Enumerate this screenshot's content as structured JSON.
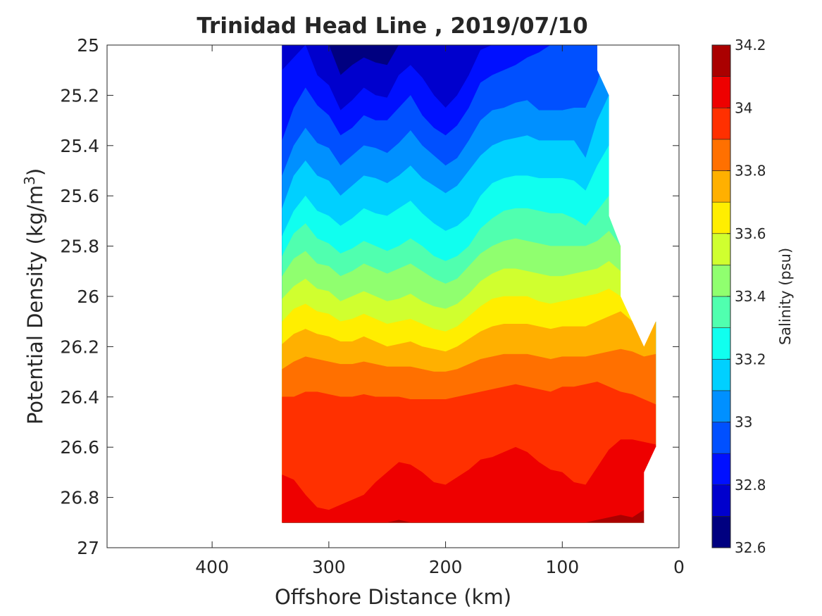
{
  "chart_data": {
    "type": "contour",
    "title": "Trinidad Head Line , 2019/07/10",
    "xlabel": "Offshore Distance (km)",
    "ylabel_text": "Potential Density (kg/m",
    "ylabel_sup": "3",
    "ylabel_close": ")",
    "colorbar_label": "Salinity (psu)",
    "xlim": [
      490,
      0
    ],
    "xlim_note": "reversed: offshore distance decreases to the right",
    "ylim": [
      25,
      27
    ],
    "y_reversed": true,
    "x_ticks": [
      400,
      300,
      200,
      100,
      0
    ],
    "y_ticks": [
      25,
      25.2,
      25.4,
      25.6,
      25.8,
      26,
      26.2,
      26.4,
      26.6,
      26.8,
      27
    ],
    "y_tick_labels": [
      "25",
      "25.2",
      "25.4",
      "25.6",
      "25.8",
      "26",
      "26.2",
      "26.4",
      "26.6",
      "26.8",
      "27"
    ],
    "colorbar_ticks": [
      34.2,
      34,
      33.8,
      33.6,
      33.4,
      33.2,
      33,
      32.8,
      32.6
    ],
    "colorbar_tick_labels": [
      "34.2",
      "34",
      "33.8",
      "33.6",
      "33.4",
      "33.2",
      "33",
      "32.8",
      "32.6"
    ],
    "levels": [
      32.6,
      32.7,
      32.8,
      32.9,
      33.0,
      33.1,
      33.2,
      33.3,
      33.4,
      33.5,
      33.6,
      33.7,
      33.8,
      33.9,
      34.0,
      34.1,
      34.2
    ],
    "level_colors": [
      "#000080",
      "#0000cd",
      "#0010ff",
      "#0050ff",
      "#0090ff",
      "#00d0ff",
      "#10ffef",
      "#50ffaf",
      "#90ff6f",
      "#d0ff2f",
      "#ffee00",
      "#ffb000",
      "#ff7000",
      "#ff3000",
      "#ee0000",
      "#aa0000"
    ],
    "x": [
      340,
      330,
      320,
      310,
      300,
      290,
      280,
      270,
      260,
      250,
      240,
      230,
      220,
      210,
      200,
      190,
      180,
      170,
      160,
      150,
      140,
      130,
      120,
      110,
      100,
      90,
      80,
      70,
      60,
      50,
      40,
      30,
      20
    ],
    "bottom_density": 26.9,
    "top_density": 25.0,
    "nan_region_top": [
      {
        "x": 70,
        "density": 25.0
      },
      {
        "x": 70,
        "density": 25.1
      },
      {
        "x": 60,
        "density": 25.2
      },
      {
        "x": 60,
        "density": 25.68
      },
      {
        "x": 50,
        "density": 25.8
      },
      {
        "x": 50,
        "density": 26.0
      },
      {
        "x": 30,
        "density": 26.2
      },
      {
        "x": 20,
        "density": 26.1
      }
    ],
    "nan_region_bottom": [
      {
        "x": 20,
        "density": 26.6
      },
      {
        "x": 30,
        "density": 26.7
      },
      {
        "x": 30,
        "density": 26.9
      }
    ],
    "contours": [
      {
        "level": 32.7,
        "density": [
          25.0,
          25.0,
          25.0,
          25.0,
          25.0,
          25.12,
          25.08,
          25.05,
          25.07,
          25.08,
          25.0,
          25.0,
          25.0,
          25.0,
          25.0,
          25.0,
          25.0,
          25.0,
          25.0,
          25.0,
          25.0,
          25.0,
          25.0,
          25.0,
          25.0,
          25.0,
          25.0,
          25.0,
          25.0,
          25.0,
          25.0,
          25.0,
          25.0
        ]
      },
      {
        "level": 32.8,
        "density": [
          25.1,
          25.05,
          25.0,
          25.12,
          25.16,
          25.26,
          25.22,
          25.17,
          25.2,
          25.21,
          25.12,
          25.08,
          25.13,
          25.2,
          25.25,
          25.2,
          25.12,
          25.02,
          25.0,
          25.0,
          25.0,
          25.0,
          25.0,
          25.0,
          25.0,
          25.0,
          25.0,
          25.0,
          25.0,
          25.0,
          25.0,
          25.0,
          25.0
        ]
      },
      {
        "level": 32.9,
        "density": [
          25.38,
          25.25,
          25.17,
          25.24,
          25.28,
          25.36,
          25.33,
          25.28,
          25.3,
          25.3,
          25.25,
          25.2,
          25.28,
          25.33,
          25.36,
          25.32,
          25.25,
          25.15,
          25.12,
          25.1,
          25.08,
          25.05,
          25.03,
          25.0,
          25.0,
          25.0,
          25.0,
          25.0,
          25.0,
          25.0,
          25.0,
          25.0,
          25.0
        ]
      },
      {
        "level": 33.0,
        "density": [
          25.52,
          25.4,
          25.33,
          25.39,
          25.41,
          25.48,
          25.44,
          25.4,
          25.41,
          25.43,
          25.39,
          25.34,
          25.4,
          25.44,
          25.48,
          25.45,
          25.38,
          25.3,
          25.26,
          25.25,
          25.23,
          25.22,
          25.26,
          25.26,
          25.26,
          25.25,
          25.25,
          25.15,
          25.0,
          25.0,
          25.0,
          25.0,
          25.0
        ]
      },
      {
        "level": 33.1,
        "density": [
          25.65,
          25.52,
          25.46,
          25.52,
          25.54,
          25.6,
          25.56,
          25.52,
          25.53,
          25.55,
          25.52,
          25.48,
          25.53,
          25.56,
          25.59,
          25.56,
          25.5,
          25.44,
          25.4,
          25.38,
          25.37,
          25.36,
          25.38,
          25.38,
          25.38,
          25.38,
          25.45,
          25.3,
          25.2,
          25.2,
          25.2,
          25.2,
          25.2
        ]
      },
      {
        "level": 33.2,
        "density": [
          25.76,
          25.66,
          25.6,
          25.66,
          25.68,
          25.72,
          25.69,
          25.65,
          25.67,
          25.68,
          25.65,
          25.62,
          25.67,
          25.71,
          25.74,
          25.72,
          25.68,
          25.6,
          25.55,
          25.53,
          25.52,
          25.52,
          25.53,
          25.53,
          25.53,
          25.54,
          25.58,
          25.48,
          25.4,
          25.4,
          25.4,
          25.4,
          25.4
        ]
      },
      {
        "level": 33.3,
        "density": [
          25.84,
          25.75,
          25.71,
          25.77,
          25.79,
          25.83,
          25.81,
          25.78,
          25.8,
          25.82,
          25.8,
          25.77,
          25.8,
          25.84,
          25.86,
          25.84,
          25.8,
          25.73,
          25.69,
          25.66,
          25.65,
          25.65,
          25.66,
          25.67,
          25.67,
          25.69,
          25.72,
          25.66,
          25.6,
          25.6,
          25.6,
          25.6,
          25.6
        ]
      },
      {
        "level": 33.4,
        "density": [
          25.92,
          25.85,
          25.82,
          25.87,
          25.88,
          25.92,
          25.9,
          25.87,
          25.89,
          25.91,
          25.89,
          25.87,
          25.9,
          25.93,
          25.95,
          25.93,
          25.88,
          25.83,
          25.8,
          25.78,
          25.77,
          25.78,
          25.79,
          25.8,
          25.8,
          25.8,
          25.8,
          25.78,
          25.74,
          25.8,
          25.8,
          25.8,
          25.8
        ]
      },
      {
        "level": 33.5,
        "density": [
          26.01,
          25.96,
          25.93,
          25.97,
          25.98,
          26.02,
          26.0,
          25.98,
          26.0,
          26.02,
          26.01,
          25.99,
          26.02,
          26.04,
          26.05,
          26.03,
          25.99,
          25.94,
          25.91,
          25.89,
          25.89,
          25.9,
          25.91,
          25.92,
          25.92,
          25.91,
          25.9,
          25.89,
          25.86,
          25.9,
          25.9,
          25.9,
          25.9
        ]
      },
      {
        "level": 33.6,
        "density": [
          26.1,
          26.05,
          26.03,
          26.06,
          26.07,
          26.1,
          26.09,
          26.07,
          26.09,
          26.11,
          26.1,
          26.09,
          26.11,
          26.13,
          26.14,
          26.12,
          26.08,
          26.04,
          26.01,
          26.0,
          26.0,
          26.0,
          26.02,
          26.03,
          26.02,
          26.01,
          26.0,
          25.99,
          25.97,
          26.0,
          26.0,
          26.0,
          26.0
        ]
      },
      {
        "level": 33.7,
        "density": [
          26.19,
          26.15,
          26.13,
          26.15,
          26.16,
          26.18,
          26.18,
          26.16,
          26.18,
          26.2,
          26.19,
          26.18,
          26.2,
          26.21,
          26.22,
          26.2,
          26.17,
          26.14,
          26.12,
          26.11,
          26.11,
          26.11,
          26.12,
          26.13,
          26.12,
          26.12,
          26.12,
          26.1,
          26.08,
          26.06,
          26.1,
          26.15,
          26.1
        ]
      },
      {
        "level": 33.8,
        "density": [
          26.29,
          26.26,
          26.24,
          26.25,
          26.26,
          26.27,
          26.27,
          26.26,
          26.27,
          26.28,
          26.28,
          26.28,
          26.29,
          26.3,
          26.3,
          26.29,
          26.27,
          26.25,
          26.24,
          26.23,
          26.23,
          26.23,
          26.24,
          26.25,
          26.24,
          26.24,
          26.24,
          26.23,
          26.22,
          26.21,
          26.22,
          26.24,
          26.23
        ]
      },
      {
        "level": 33.9,
        "density": [
          26.4,
          26.4,
          26.38,
          26.38,
          26.39,
          26.4,
          26.4,
          26.39,
          26.4,
          26.4,
          26.4,
          26.41,
          26.41,
          26.41,
          26.41,
          26.4,
          26.39,
          26.38,
          26.37,
          26.36,
          26.35,
          26.36,
          26.37,
          26.38,
          26.36,
          26.36,
          26.35,
          26.34,
          26.36,
          26.38,
          26.39,
          26.41,
          26.43
        ]
      },
      {
        "level": 34.0,
        "density": [
          26.71,
          26.73,
          26.79,
          26.84,
          26.85,
          26.83,
          26.81,
          26.79,
          26.74,
          26.7,
          26.66,
          26.67,
          26.7,
          26.74,
          26.75,
          26.72,
          26.69,
          26.65,
          26.64,
          26.62,
          26.6,
          26.62,
          26.66,
          26.69,
          26.7,
          26.74,
          26.75,
          26.68,
          26.61,
          26.57,
          26.57,
          26.58,
          26.59
        ]
      },
      {
        "level": 34.1,
        "density": [
          26.9,
          26.9,
          26.9,
          26.9,
          26.9,
          26.9,
          26.9,
          26.9,
          26.9,
          26.9,
          26.89,
          26.9,
          26.9,
          26.9,
          26.9,
          26.9,
          26.9,
          26.9,
          26.9,
          26.9,
          26.9,
          26.9,
          26.9,
          26.9,
          26.9,
          26.9,
          26.9,
          26.89,
          26.88,
          26.87,
          26.88,
          26.85,
          26.9
        ]
      }
    ]
  }
}
